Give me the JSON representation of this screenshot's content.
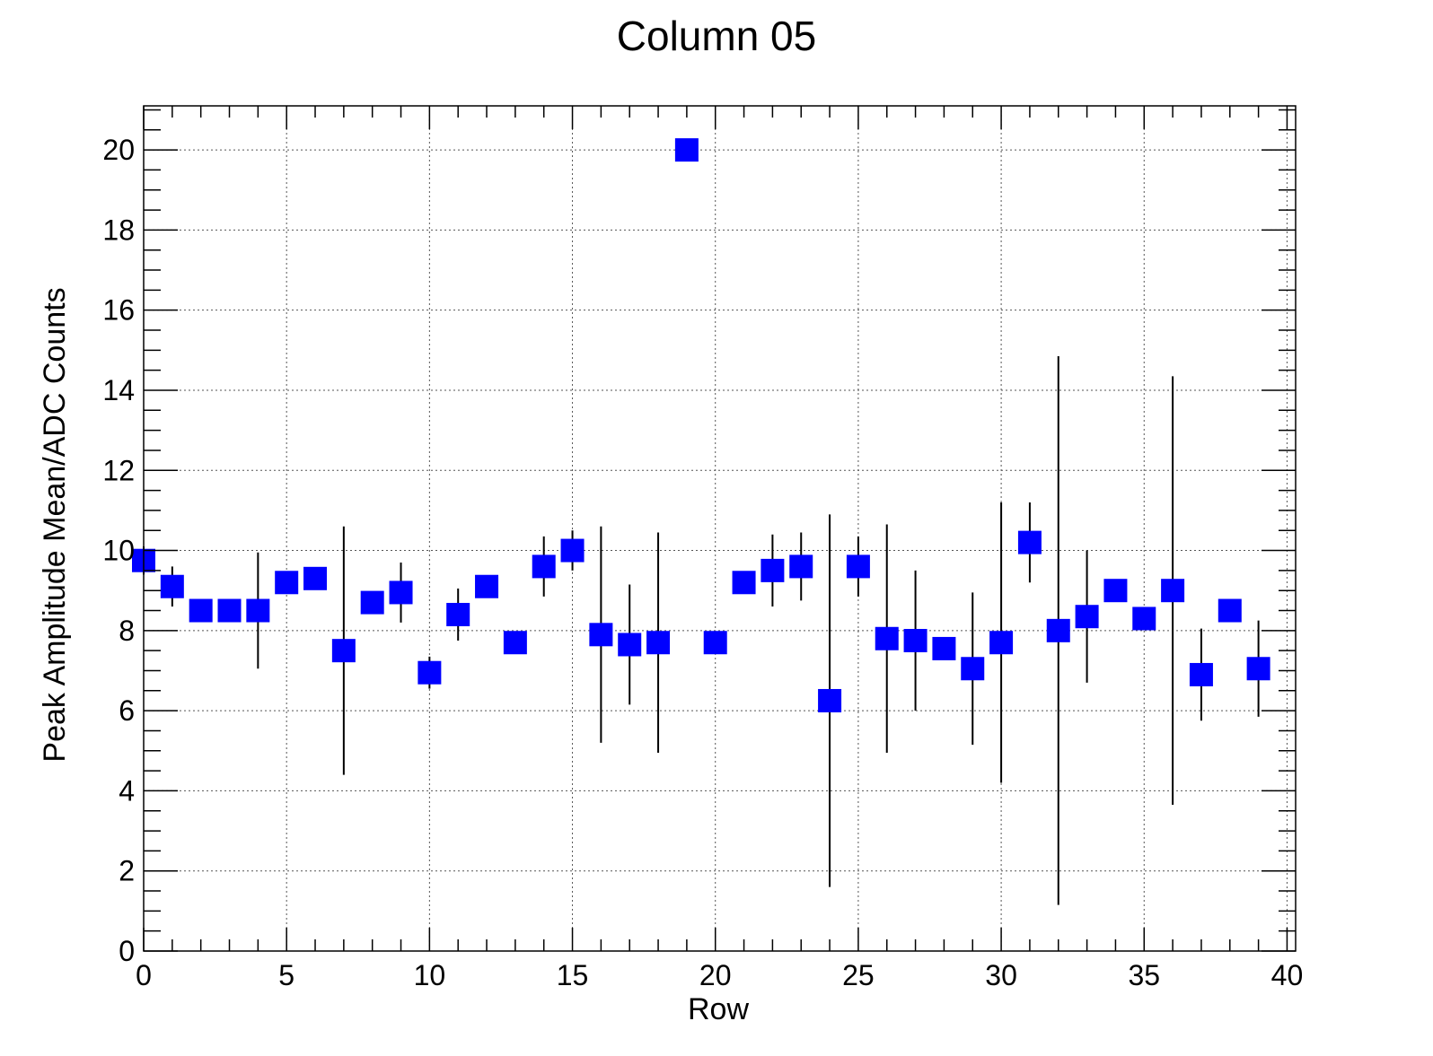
{
  "chart_data": {
    "type": "scatter",
    "title": "Column 05",
    "xlabel": "Row",
    "ylabel": "Peak Amplitude Mean/ADC Counts",
    "xlim": [
      0,
      40.3
    ],
    "ylim": [
      0,
      21.1
    ],
    "x_ticks": [
      0,
      5,
      10,
      15,
      20,
      25,
      30,
      35,
      40
    ],
    "y_ticks": [
      0,
      2,
      4,
      6,
      8,
      10,
      12,
      14,
      16,
      18,
      20
    ],
    "x_minor_step": 1,
    "y_minor_step": 0.5,
    "grid": true,
    "marker": "square",
    "marker_color": "#0000ff",
    "series": [
      {
        "points": [
          {
            "x": 0,
            "y": 9.75,
            "err": 0.35
          },
          {
            "x": 1,
            "y": 9.1,
            "err": 0.5
          },
          {
            "x": 2,
            "y": 8.5,
            "err": 0
          },
          {
            "x": 3,
            "y": 8.5,
            "err": 0
          },
          {
            "x": 4,
            "y": 8.5,
            "err": 1.45
          },
          {
            "x": 5,
            "y": 9.2,
            "err": 0
          },
          {
            "x": 6,
            "y": 9.3,
            "err": 0
          },
          {
            "x": 7,
            "y": 7.5,
            "err": 3.1
          },
          {
            "x": 8,
            "y": 8.7,
            "err": 0
          },
          {
            "x": 9,
            "y": 8.95,
            "err": 0.75
          },
          {
            "x": 10,
            "y": 6.95,
            "err": 0.4
          },
          {
            "x": 11,
            "y": 8.4,
            "err": 0.65
          },
          {
            "x": 12,
            "y": 9.1,
            "err": 0
          },
          {
            "x": 13,
            "y": 7.7,
            "err": 0
          },
          {
            "x": 14,
            "y": 9.6,
            "err": 0.75
          },
          {
            "x": 15,
            "y": 10.0,
            "err": 0.5
          },
          {
            "x": 16,
            "y": 7.9,
            "err": 2.7
          },
          {
            "x": 17,
            "y": 7.65,
            "err": 1.5
          },
          {
            "x": 18,
            "y": 7.7,
            "err": 2.75
          },
          {
            "x": 19,
            "y": 20.0,
            "err": 0
          },
          {
            "x": 20,
            "y": 7.7,
            "err": 0
          },
          {
            "x": 21,
            "y": 9.2,
            "err": 0
          },
          {
            "x": 22,
            "y": 9.5,
            "err": 0.9
          },
          {
            "x": 23,
            "y": 9.6,
            "err": 0.85
          },
          {
            "x": 24,
            "y": 6.25,
            "err": 4.65
          },
          {
            "x": 25,
            "y": 9.6,
            "err": 0.75
          },
          {
            "x": 26,
            "y": 7.8,
            "err": 2.85
          },
          {
            "x": 27,
            "y": 7.75,
            "err": 1.75
          },
          {
            "x": 28,
            "y": 7.55,
            "err": 0
          },
          {
            "x": 29,
            "y": 7.05,
            "err": 1.9
          },
          {
            "x": 30,
            "y": 7.7,
            "err": 3.5
          },
          {
            "x": 31,
            "y": 10.2,
            "err": 1.0
          },
          {
            "x": 32,
            "y": 8.0,
            "err": 6.85
          },
          {
            "x": 33,
            "y": 8.35,
            "err": 1.65
          },
          {
            "x": 34,
            "y": 9.0,
            "err": 0
          },
          {
            "x": 35,
            "y": 8.3,
            "err": 0
          },
          {
            "x": 36,
            "y": 9.0,
            "err": 5.35
          },
          {
            "x": 37,
            "y": 6.9,
            "err": 1.15
          },
          {
            "x": 38,
            "y": 8.5,
            "err": 0
          },
          {
            "x": 39,
            "y": 7.05,
            "err": 1.2
          }
        ]
      }
    ]
  }
}
